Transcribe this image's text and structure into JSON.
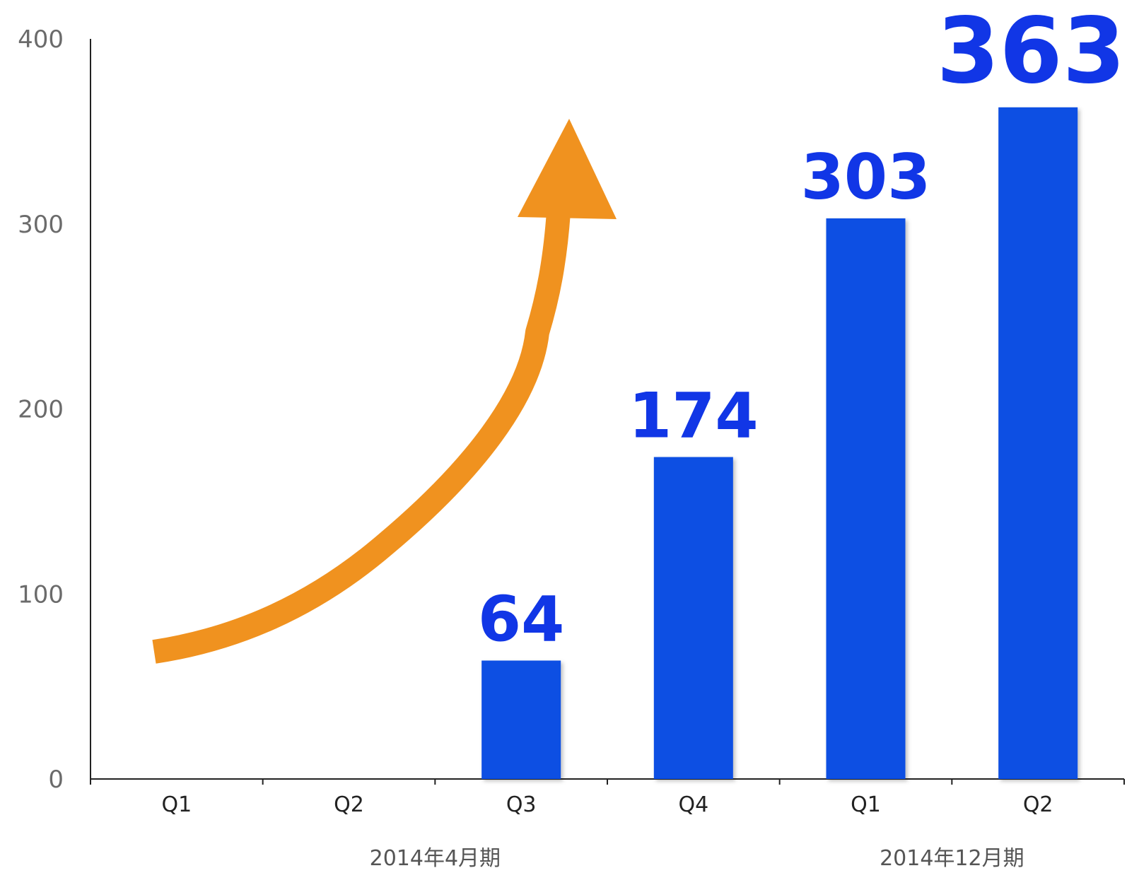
{
  "chart_data": {
    "type": "bar",
    "categories": [
      "Q1",
      "Q2",
      "Q3",
      "Q4",
      "Q1",
      "Q2"
    ],
    "values": [
      null,
      null,
      64,
      174,
      303,
      363
    ],
    "data_labels": [
      "",
      "",
      "64",
      "174",
      "303",
      "363"
    ],
    "category_groups": [
      {
        "label": "2014年4月期",
        "categories": [
          0,
          1,
          2,
          3
        ]
      },
      {
        "label": "2014年12月期",
        "categories": [
          4,
          5
        ]
      }
    ],
    "ylim": [
      0,
      400
    ],
    "yticks": [
      0,
      100,
      200,
      300,
      400
    ],
    "grid": false,
    "title": "",
    "xlabel": "",
    "ylabel": "",
    "annotations": [
      {
        "type": "arrow",
        "shape": "upward-curving",
        "color": "#f0921f",
        "meaning": "growth trend"
      }
    ],
    "colors": {
      "bar": "#0b50e3",
      "label": "#1136e6",
      "arrow": "#f0921f",
      "axis": "#222222",
      "tick_text": "#6b6b6b"
    }
  }
}
